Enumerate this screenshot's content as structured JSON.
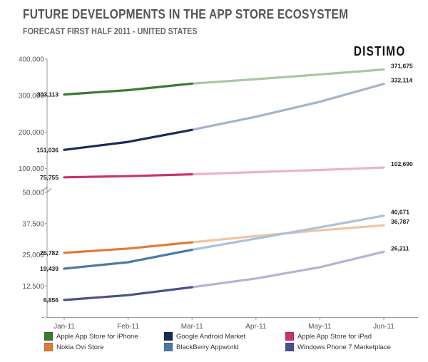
{
  "title": "FUTURE DEVELOPMENTS IN THE APP STORE ECOSYSTEM",
  "subtitle": "FORECAST FIRST HALF 2011 - UNITED STATES",
  "brand": "DISTIMO",
  "chart_data": {
    "type": "line",
    "categories": [
      "Jan-11",
      "Feb-11",
      "Mar-11",
      "Apr-11",
      "May-11",
      "Jun-11"
    ],
    "actual_through": "Mar-11",
    "panels": [
      {
        "position": "top",
        "ylim": [
          50000,
          400000
        ],
        "ticks": [
          100000,
          200000,
          300000,
          400000
        ],
        "tick_labels": [
          "100,000",
          "200,000",
          "300,000",
          "400,000"
        ],
        "series": [
          {
            "name": "Apple App Store for iPhone",
            "color": "#3a7a33",
            "light": "#a8c8a0",
            "values": [
              303113,
              315000,
              333000,
              345000,
              358000,
              371675
            ],
            "start_label": "303,113",
            "end_label": "371,675"
          },
          {
            "name": "Google Android Market",
            "color": "#1b2a57",
            "light": "#a5b2cc",
            "values": [
              151036,
              173000,
              206000,
              242000,
              283000,
              332114
            ],
            "start_label": "151,036",
            "end_label": "332,114"
          },
          {
            "name": "Apple App Store for iPad",
            "color": "#c83370",
            "light": "#eeb1c9",
            "values": [
              75755,
              79000,
              84000,
              90000,
              96000,
              102690
            ],
            "start_label": "75,755",
            "end_label": "102,690"
          }
        ]
      },
      {
        "position": "bottom",
        "ylim": [
          0,
          50000
        ],
        "ticks": [
          0,
          12500,
          25000,
          37500,
          50000
        ],
        "tick_labels": [
          "-",
          "12,500",
          "25,000",
          "37,500",
          "50,000"
        ],
        "series": [
          {
            "name": "Nokia Ovi Store",
            "color": "#e07a3a",
            "light": "#f2c3a2",
            "values": [
              25782,
              27500,
              30000,
              32500,
              34800,
              36787
            ],
            "start_label": "25,782",
            "end_label": "36,787"
          },
          {
            "name": "BlackBerry Appworld",
            "color": "#4a79a8",
            "light": "#a9c3dc",
            "values": [
              19439,
              22000,
              27000,
              31500,
              36000,
              40671
            ],
            "start_label": "19,439",
            "end_label": "40,671"
          },
          {
            "name": "Windows Phone 7 Marketplace",
            "color": "#4c4f8c",
            "light": "#b2b4d6",
            "values": [
              6856,
              8800,
              12000,
              15500,
              20000,
              26211
            ],
            "start_label": "6,856",
            "end_label": "26,211"
          }
        ]
      }
    ],
    "legend_order": [
      "Apple App Store for iPhone",
      "Google Android Market",
      "Apple App Store for iPad",
      "Nokia Ovi Store",
      "BlackBerry Appworld",
      "Windows Phone 7 Marketplace"
    ],
    "grid": false,
    "legend": "bottom"
  }
}
